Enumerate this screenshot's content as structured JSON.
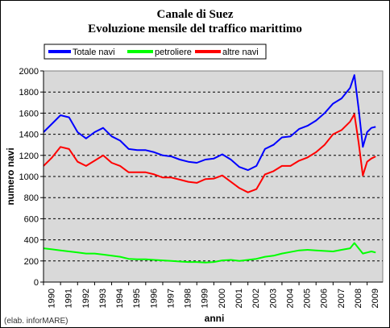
{
  "chart_data": {
    "type": "line",
    "title": "Canale di Suez",
    "subtitle": "Evoluzione mensile del traffico marittimo",
    "xlabel": "anni",
    "ylabel": "numero navi",
    "ylim": [
      0,
      2000
    ],
    "yticks": [
      0,
      200,
      400,
      600,
      800,
      1000,
      1200,
      1400,
      1600,
      1800,
      2000
    ],
    "xticks": [
      "1990",
      "1991",
      "1992",
      "1993",
      "1994",
      "1995",
      "1996",
      "1997",
      "1998",
      "1999",
      "2000",
      "2001",
      "2002",
      "2003",
      "2004",
      "2005",
      "2006",
      "2007",
      "2008",
      "2009"
    ],
    "grid": "horizontal-dashed",
    "legend_position": "top",
    "credit": "(elab. inforMARE)",
    "x": [
      "1990-01",
      "1990-07",
      "1991-01",
      "1991-07",
      "1992-01",
      "1992-07",
      "1993-01",
      "1993-07",
      "1994-01",
      "1994-07",
      "1995-01",
      "1995-07",
      "1996-01",
      "1996-07",
      "1997-01",
      "1997-07",
      "1998-01",
      "1998-07",
      "1999-01",
      "1999-07",
      "2000-01",
      "2000-07",
      "2001-01",
      "2001-07",
      "2002-01",
      "2002-07",
      "2003-01",
      "2003-07",
      "2004-01",
      "2004-07",
      "2005-01",
      "2005-07",
      "2006-01",
      "2006-07",
      "2007-01",
      "2007-07",
      "2008-01",
      "2008-04",
      "2008-07",
      "2008-10",
      "2009-01",
      "2009-04",
      "2009-07"
    ],
    "series": [
      {
        "name": "Totale navi",
        "color": "#0000ff",
        "values": [
          1420,
          1500,
          1580,
          1560,
          1420,
          1360,
          1420,
          1460,
          1380,
          1340,
          1260,
          1250,
          1250,
          1230,
          1200,
          1190,
          1160,
          1140,
          1130,
          1160,
          1170,
          1210,
          1160,
          1090,
          1060,
          1100,
          1260,
          1300,
          1370,
          1380,
          1450,
          1480,
          1530,
          1600,
          1690,
          1740,
          1840,
          1960,
          1640,
          1280,
          1420,
          1460,
          1470
        ]
      },
      {
        "name": "petroliere",
        "color": "#00ff00",
        "values": [
          320,
          310,
          300,
          290,
          280,
          270,
          270,
          260,
          250,
          240,
          220,
          215,
          215,
          210,
          205,
          200,
          195,
          190,
          190,
          185,
          190,
          205,
          210,
          200,
          210,
          220,
          240,
          250,
          270,
          285,
          300,
          305,
          300,
          295,
          290,
          305,
          320,
          370,
          320,
          270,
          280,
          290,
          280
        ]
      },
      {
        "name": "altre navi",
        "color": "#ff0000",
        "values": [
          1100,
          1180,
          1280,
          1260,
          1140,
          1100,
          1150,
          1200,
          1130,
          1100,
          1040,
          1040,
          1040,
          1020,
          990,
          990,
          970,
          950,
          940,
          975,
          980,
          1010,
          950,
          890,
          850,
          880,
          1020,
          1050,
          1100,
          1100,
          1150,
          1180,
          1230,
          1300,
          1400,
          1440,
          1520,
          1590,
          1320,
          1010,
          1140,
          1170,
          1190
        ]
      }
    ]
  }
}
